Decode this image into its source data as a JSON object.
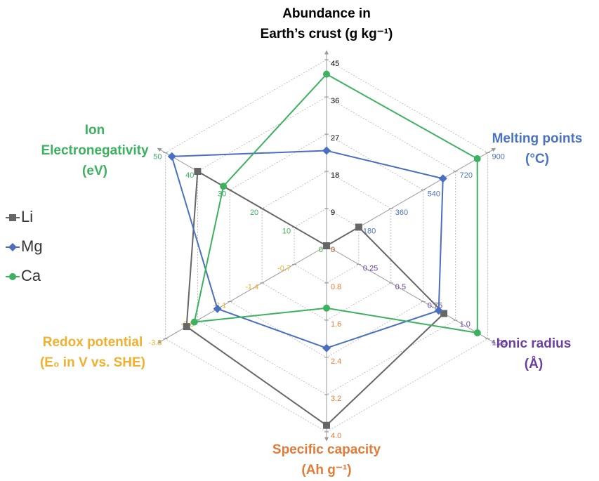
{
  "chart_data": {
    "type": "radar",
    "axes": [
      {
        "name": [
          "Abundance in",
          "Earth’s crust (g kg⁻¹)"
        ],
        "color": "#000000",
        "lim": [
          0,
          45
        ],
        "ticks": [
          0,
          9,
          18,
          27,
          36,
          45
        ]
      },
      {
        "name": [
          "Melting points",
          "(°C)"
        ],
        "color": "#4a73c4",
        "lim": [
          0,
          900
        ],
        "ticks": [
          0,
          180,
          360,
          540,
          720,
          900
        ]
      },
      {
        "name": [
          "Ionic radius",
          "(Å)"
        ],
        "color": "#6a3fa0",
        "lim": [
          0,
          1.25
        ],
        "ticks": [
          0,
          0.25,
          0.5,
          0.75,
          {
            "value": 1,
            "label": "1.0"
          },
          1.25
        ]
      },
      {
        "name": [
          "Specific capacity",
          "(Ah g⁻¹)"
        ],
        "color": "#e07b39",
        "lim": [
          0,
          4
        ],
        "ticks": [
          0,
          0.8,
          1.6,
          2.4,
          3.2,
          {
            "value": 4,
            "label": "4.0"
          }
        ]
      },
      {
        "name": [
          "Redox potential",
          "(E₀ in V vs. SHE)"
        ],
        "color": "#f0b030",
        "lim": [
          0,
          -3.5
        ],
        "ticks": [
          0,
          -0.7,
          -1.4,
          -2.1,
          -2.8,
          -3.5
        ]
      },
      {
        "name": [
          "Ion",
          "Electronegativity",
          "(eV)"
        ],
        "color": "#3cb15f",
        "lim": [
          0,
          50
        ],
        "ticks": [
          0,
          10,
          20,
          30,
          40,
          50
        ]
      }
    ],
    "series": [
      {
        "name": "Li",
        "color": "#666666",
        "marker": "square",
        "values": [
          0,
          180,
          0.91,
          3.86,
          -3.04,
          40
        ]
      },
      {
        "name": "Mg",
        "color": "#4a6fc1",
        "marker": "diamond",
        "values": [
          23,
          650,
          0.87,
          2.2,
          -2.37,
          48
        ]
      },
      {
        "name": "Ca",
        "color": "#3cb15f",
        "marker": "circle",
        "values": [
          41.5,
          842,
          1.17,
          1.34,
          -2.87,
          32
        ]
      }
    ],
    "legend": "left",
    "grid": true
  }
}
